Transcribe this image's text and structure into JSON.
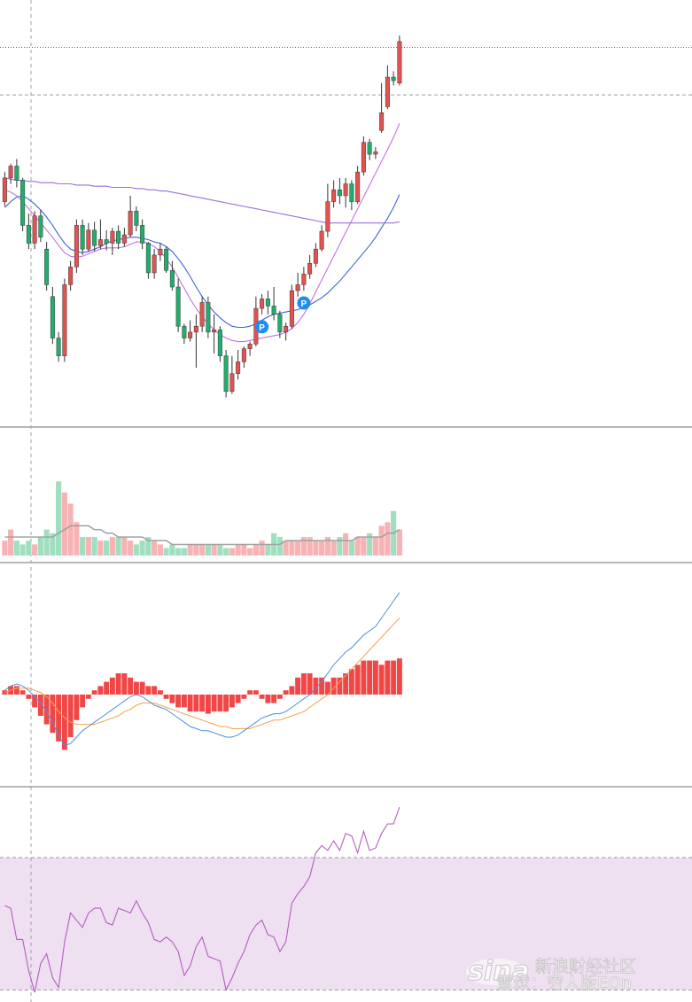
{
  "colors": {
    "up": "#e2524f",
    "down": "#1fae6c",
    "vol_up": "#f7b3b3",
    "vol_down": "#9fdfc0",
    "ma_short": "#3f63d8",
    "ma_mid": "#c86ee6",
    "ma_long": "#9a6fe0",
    "macd_dif": "#4b8fe0",
    "macd_dea": "#f0a34a",
    "macd_hist": "#f04646",
    "rsi": "#b35ec0",
    "rsi_band": "#efe0f1",
    "marker": "#1e8df0",
    "crosshair": "#9aa0aa",
    "price_line": "#4461c9"
  },
  "markers": [
    {
      "label": "P",
      "index": 43
    },
    {
      "label": "P",
      "index": 50
    }
  ],
  "watermark": {
    "logo": "sina",
    "site": "新浪财经社区",
    "author": "雪球：穷人版EOn"
  },
  "chart_data": [
    {
      "type": "candlestick",
      "panel": "price",
      "ohlc": [
        [
          45.0,
          47.5,
          44.6,
          47.0
        ],
        [
          47.0,
          48.2,
          46.5,
          48.0
        ],
        [
          48.0,
          48.6,
          46.2,
          46.8
        ],
        [
          46.8,
          47.0,
          42.5,
          43.0
        ],
        [
          43.0,
          44.0,
          41.0,
          41.5
        ],
        [
          41.5,
          44.2,
          41.0,
          43.8
        ],
        [
          43.8,
          44.3,
          41.6,
          42.0
        ],
        [
          41.0,
          41.6,
          37.5,
          38.0
        ],
        [
          37.0,
          37.8,
          33.0,
          33.5
        ],
        [
          33.5,
          34.0,
          31.5,
          32.0
        ],
        [
          32.0,
          38.5,
          31.5,
          38.0
        ],
        [
          38.0,
          40.0,
          37.5,
          39.5
        ],
        [
          39.5,
          43.5,
          39.0,
          43.0
        ],
        [
          43.0,
          43.5,
          40.5,
          41.0
        ],
        [
          41.0,
          43.2,
          40.8,
          42.6
        ],
        [
          42.6,
          43.3,
          40.8,
          41.3
        ],
        [
          41.3,
          43.5,
          41.0,
          41.8
        ],
        [
          41.8,
          42.6,
          40.9,
          41.5
        ],
        [
          41.5,
          42.8,
          40.5,
          42.5
        ],
        [
          42.5,
          43.0,
          41.0,
          41.5
        ],
        [
          41.5,
          42.8,
          41.2,
          42.2
        ],
        [
          42.2,
          45.5,
          42.0,
          44.2
        ],
        [
          44.2,
          44.6,
          42.5,
          43.0
        ],
        [
          43.0,
          43.5,
          41.0,
          41.5
        ],
        [
          41.5,
          41.6,
          38.5,
          39.0
        ],
        [
          39.0,
          41.0,
          38.5,
          40.5
        ],
        [
          40.5,
          41.5,
          40.0,
          41.0
        ],
        [
          41.0,
          41.2,
          39.0,
          39.2
        ],
        [
          39.2,
          40.0,
          37.5,
          37.8
        ],
        [
          37.8,
          38.5,
          34.0,
          34.5
        ],
        [
          34.5,
          34.7,
          33.0,
          33.5
        ],
        [
          33.5,
          35.0,
          33.2,
          34.0
        ],
        [
          34.0,
          35.5,
          31.0,
          34.5
        ],
        [
          34.5,
          37.0,
          34.0,
          36.5
        ],
        [
          36.5,
          37.0,
          33.5,
          34.0
        ],
        [
          34.0,
          35.5,
          32.2,
          34.2
        ],
        [
          34.2,
          34.5,
          31.5,
          32.0
        ],
        [
          32.0,
          32.5,
          28.5,
          29.0
        ],
        [
          29.0,
          32.0,
          28.8,
          30.5
        ],
        [
          30.5,
          32.5,
          30.0,
          31.5
        ],
        [
          31.5,
          32.8,
          31.0,
          32.6
        ],
        [
          32.6,
          33.2,
          32.0,
          33.0
        ],
        [
          33.0,
          37.0,
          32.8,
          36.0
        ],
        [
          36.0,
          37.2,
          35.5,
          36.8
        ],
        [
          36.8,
          37.5,
          35.5,
          36.2
        ],
        [
          36.2,
          37.8,
          35.0,
          35.5
        ],
        [
          35.5,
          35.8,
          33.5,
          34.0
        ],
        [
          34.0,
          34.8,
          33.3,
          34.5
        ],
        [
          34.5,
          38.0,
          34.3,
          37.5
        ],
        [
          37.5,
          39.0,
          37.0,
          38.0
        ],
        [
          38.0,
          39.5,
          37.5,
          38.9
        ],
        [
          38.9,
          40.5,
          38.5,
          39.8
        ],
        [
          39.8,
          41.5,
          39.5,
          41.0
        ],
        [
          41.0,
          43.0,
          40.8,
          42.5
        ],
        [
          42.5,
          46.5,
          42.0,
          45.0
        ],
        [
          45.0,
          46.8,
          44.5,
          46.0
        ],
        [
          46.0,
          47.0,
          44.8,
          45.5
        ],
        [
          45.5,
          47.0,
          44.5,
          46.5
        ],
        [
          46.5,
          46.8,
          44.3,
          45.0
        ],
        [
          45.0,
          48.0,
          44.8,
          47.5
        ],
        [
          47.5,
          50.5,
          47.2,
          50.0
        ],
        [
          50.0,
          50.3,
          48.5,
          49.0
        ],
        [
          49.0,
          49.6,
          48.6,
          49.2
        ],
        [
          51.0,
          55.0,
          50.8,
          52.5
        ],
        [
          53.0,
          56.5,
          52.8,
          55.5
        ],
        [
          55.5,
          56.0,
          54.8,
          55.2
        ],
        [
          55.0,
          59.0,
          54.8,
          58.5
        ]
      ],
      "ma": [
        {
          "color_key": "ma_short",
          "values": [
            44.5,
            45.0,
            45.4,
            45.5,
            45.2,
            44.8,
            44.3,
            43.7,
            43.0,
            42.2,
            41.5,
            41.0,
            40.8,
            40.7,
            40.8,
            41.0,
            41.2,
            41.5,
            41.7,
            41.8,
            41.9,
            42.0,
            42.0,
            41.9,
            41.8,
            41.6,
            41.5,
            41.2,
            40.8,
            40.2,
            39.5,
            38.7,
            37.8,
            37.0,
            36.3,
            35.7,
            35.2,
            34.8,
            34.5,
            34.4,
            34.4,
            34.5,
            34.7,
            35.0,
            35.3,
            35.5,
            35.6,
            35.7,
            35.8,
            35.9,
            36.1,
            36.3,
            36.6,
            36.9,
            37.3,
            37.8,
            38.3,
            38.9,
            39.5,
            40.1,
            40.7,
            41.3,
            42.0,
            42.8,
            43.6,
            44.5,
            45.6
          ]
        },
        {
          "color_key": "ma_mid",
          "values": [
            46.0,
            45.8,
            45.5,
            45.0,
            44.4,
            43.8,
            43.2,
            42.6,
            42.0,
            41.3,
            40.7,
            40.4,
            40.3,
            40.4,
            40.6,
            40.8,
            41.0,
            41.1,
            41.1,
            41.1,
            41.2,
            41.4,
            41.6,
            41.6,
            41.5,
            41.2,
            40.8,
            40.2,
            39.5,
            38.6,
            37.7,
            36.8,
            36.0,
            35.3,
            34.7,
            34.2,
            33.8,
            33.5,
            33.3,
            33.2,
            33.2,
            33.3,
            33.4,
            33.5,
            33.6,
            33.7,
            33.8,
            34.0,
            34.3,
            34.8,
            35.5,
            36.4,
            37.4,
            38.4,
            39.4,
            40.4,
            41.4,
            42.4,
            43.4,
            44.4,
            45.4,
            46.4,
            47.4,
            48.4,
            49.4,
            50.4,
            51.6
          ]
        },
        {
          "color_key": "ma_long",
          "values": [
            47.0,
            46.9,
            46.8,
            46.8,
            46.7,
            46.7,
            46.6,
            46.6,
            46.6,
            46.5,
            46.5,
            46.5,
            46.4,
            46.4,
            46.4,
            46.3,
            46.3,
            46.3,
            46.2,
            46.2,
            46.2,
            46.2,
            46.1,
            46.1,
            46.0,
            46.0,
            45.9,
            45.9,
            45.8,
            45.7,
            45.6,
            45.5,
            45.4,
            45.3,
            45.2,
            45.1,
            45.0,
            44.9,
            44.8,
            44.7,
            44.6,
            44.5,
            44.4,
            44.3,
            44.2,
            44.1,
            44.0,
            43.9,
            43.8,
            43.7,
            43.6,
            43.5,
            43.4,
            43.3,
            43.2,
            43.2,
            43.2,
            43.2,
            43.2,
            43.2,
            43.2,
            43.2,
            43.2,
            43.2,
            43.2,
            43.2,
            43.3
          ]
        }
      ],
      "price_level": 58.0,
      "ref_level": 54.0,
      "ylim": [
        26.0,
        62.0
      ]
    },
    {
      "type": "bar",
      "panel": "volume",
      "values": [
        4,
        7,
        4,
        3,
        4,
        3,
        5,
        7,
        6,
        20,
        17,
        14,
        9,
        5,
        5,
        5,
        4,
        4,
        5,
        5,
        5,
        4,
        3,
        4,
        5,
        4,
        3,
        2,
        3,
        2,
        2,
        3,
        3,
        3,
        3,
        3,
        3,
        2,
        2,
        3,
        3,
        2,
        3,
        4,
        3,
        6,
        5,
        4,
        4,
        4,
        5,
        5,
        4,
        4,
        5,
        4,
        5,
        6,
        4,
        5,
        5,
        6,
        5,
        8,
        9,
        12,
        7
      ],
      "ma": [
        5,
        5,
        5,
        5,
        5,
        5,
        5,
        5,
        5,
        6,
        7,
        8,
        8,
        8,
        8,
        7,
        7,
        6,
        6,
        5,
        5,
        5,
        5,
        5,
        4,
        4,
        4,
        4,
        3,
        3,
        3,
        3,
        3,
        3,
        3,
        3,
        3,
        3,
        3,
        3,
        3,
        3,
        3,
        3,
        3,
        3,
        3,
        4,
        4,
        4,
        4,
        4,
        4,
        4,
        4,
        4,
        4,
        4,
        4,
        5,
        5,
        5,
        5,
        5,
        6,
        6,
        7
      ],
      "ylim": [
        0,
        22
      ]
    },
    {
      "type": "line",
      "panel": "macd",
      "dif": [
        0.2,
        0.4,
        0.5,
        0.4,
        0.2,
        -0.1,
        -0.4,
        -0.8,
        -1.3,
        -1.9,
        -2.4,
        -2.3,
        -2.0,
        -1.7,
        -1.5,
        -1.3,
        -1.1,
        -0.9,
        -0.7,
        -0.5,
        -0.3,
        -0.1,
        0.0,
        -0.1,
        -0.3,
        -0.5,
        -0.6,
        -0.7,
        -0.9,
        -1.1,
        -1.3,
        -1.5,
        -1.6,
        -1.7,
        -1.7,
        -1.8,
        -1.9,
        -2.0,
        -2.0,
        -1.9,
        -1.7,
        -1.5,
        -1.3,
        -1.1,
        -1.0,
        -0.9,
        -0.9,
        -0.8,
        -0.6,
        -0.4,
        -0.2,
        0.0,
        0.3,
        0.6,
        1.0,
        1.4,
        1.7,
        2.0,
        2.2,
        2.5,
        2.8,
        3.0,
        3.2,
        3.6,
        4.0,
        4.4,
        4.8
      ],
      "dea": [
        0.1,
        0.2,
        0.3,
        0.3,
        0.3,
        0.2,
        0.1,
        -0.1,
        -0.4,
        -0.8,
        -1.1,
        -1.3,
        -1.4,
        -1.4,
        -1.4,
        -1.4,
        -1.3,
        -1.2,
        -1.1,
        -1.0,
        -0.8,
        -0.7,
        -0.5,
        -0.4,
        -0.4,
        -0.4,
        -0.5,
        -0.6,
        -0.7,
        -0.8,
        -0.9,
        -1.0,
        -1.1,
        -1.2,
        -1.3,
        -1.4,
        -1.5,
        -1.5,
        -1.6,
        -1.6,
        -1.6,
        -1.6,
        -1.5,
        -1.4,
        -1.3,
        -1.2,
        -1.2,
        -1.1,
        -1.0,
        -0.9,
        -0.8,
        -0.6,
        -0.4,
        -0.2,
        0.0,
        0.3,
        0.6,
        0.9,
        1.2,
        1.5,
        1.8,
        2.1,
        2.4,
        2.7,
        3.0,
        3.3,
        3.6
      ],
      "hist": [
        0.2,
        0.4,
        0.4,
        0.2,
        -0.2,
        -0.6,
        -1.0,
        -1.4,
        -1.8,
        -2.2,
        -2.6,
        -2.0,
        -1.2,
        -0.6,
        -0.2,
        0.2,
        0.4,
        0.6,
        0.8,
        1.0,
        1.0,
        0.8,
        0.6,
        0.6,
        0.4,
        0.4,
        0.2,
        -0.2,
        -0.4,
        -0.6,
        -0.6,
        -0.8,
        -0.8,
        -0.8,
        -0.9,
        -0.8,
        -0.8,
        -0.8,
        -0.6,
        -0.4,
        -0.2,
        0.2,
        0.2,
        -0.2,
        -0.4,
        -0.4,
        -0.2,
        0.2,
        0.4,
        0.8,
        1.0,
        1.0,
        0.8,
        0.8,
        0.6,
        0.8,
        0.8,
        1.0,
        1.2,
        1.4,
        1.6,
        1.6,
        1.6,
        1.4,
        1.6,
        1.6,
        1.7
      ]
    },
    {
      "type": "line",
      "panel": "rsi",
      "values": [
        50,
        49,
        36,
        36,
        23,
        14,
        26,
        30,
        20,
        16,
        35,
        47,
        44,
        41,
        47,
        49,
        49,
        43,
        42,
        49,
        48,
        47,
        52,
        47,
        43,
        36,
        35,
        37,
        35,
        31,
        21,
        25,
        33,
        37,
        29,
        28,
        27,
        15,
        20,
        26,
        31,
        38,
        42,
        44,
        38,
        37,
        31,
        35,
        51,
        55,
        58,
        62,
        72,
        75,
        73,
        77,
        73,
        80,
        79,
        72,
        81,
        73,
        74,
        80,
        84,
        84,
        91
      ],
      "overbought": 70,
      "oversold": 15,
      "ylim": [
        10,
        98
      ]
    }
  ]
}
